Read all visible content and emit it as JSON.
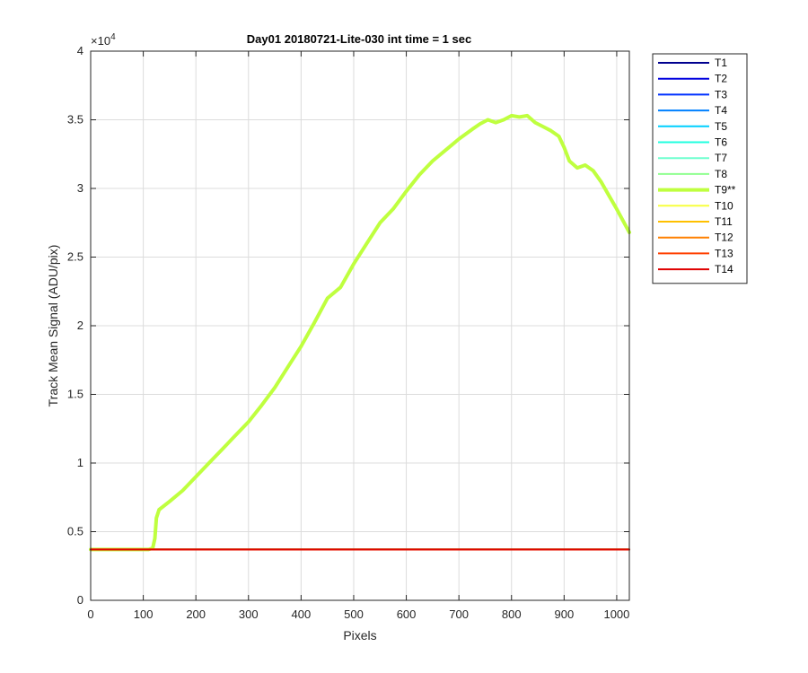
{
  "chart_data": {
    "type": "line",
    "title": "Day01 20180721-Lite-030 int time = 1 sec",
    "xlabel": "Pixels",
    "ylabel": "Track Mean Signal (ADU/pix)",
    "y_exponent_label": "×10",
    "y_exponent_power": "4",
    "xlim": [
      0,
      1024
    ],
    "ylim": [
      0,
      40000
    ],
    "xticks": [
      0,
      100,
      200,
      300,
      400,
      500,
      600,
      700,
      800,
      900,
      1000
    ],
    "yticks": [
      0,
      5000,
      10000,
      15000,
      20000,
      25000,
      30000,
      35000,
      40000
    ],
    "xtick_labels": [
      "0",
      "100",
      "200",
      "300",
      "400",
      "500",
      "600",
      "700",
      "800",
      "900",
      "1000"
    ],
    "ytick_labels": [
      "0",
      "0.5",
      "1",
      "1.5",
      "2",
      "2.5",
      "3",
      "3.5",
      "4"
    ],
    "grid": true,
    "legend_position": "outside-top-right",
    "series": [
      {
        "name": "T1",
        "color": "#00008f",
        "width": 2,
        "x": [
          0,
          1024
        ],
        "y": [
          3700,
          3700
        ]
      },
      {
        "name": "T2",
        "color": "#0000df",
        "width": 2,
        "x": [
          0,
          1024
        ],
        "y": [
          3700,
          3700
        ]
      },
      {
        "name": "T3",
        "color": "#0030ff",
        "width": 2,
        "x": [
          0,
          1024
        ],
        "y": [
          3700,
          3700
        ]
      },
      {
        "name": "T4",
        "color": "#0080ff",
        "width": 2,
        "x": [
          0,
          1024
        ],
        "y": [
          3700,
          3700
        ]
      },
      {
        "name": "T5",
        "color": "#00cfff",
        "width": 2,
        "x": [
          0,
          1024
        ],
        "y": [
          3700,
          3700
        ]
      },
      {
        "name": "T6",
        "color": "#20ffdf",
        "width": 2,
        "x": [
          0,
          1024
        ],
        "y": [
          3700,
          3700
        ]
      },
      {
        "name": "T7",
        "color": "#70ffcf",
        "width": 2,
        "x": [
          0,
          1024
        ],
        "y": [
          3700,
          3700
        ]
      },
      {
        "name": "T8",
        "color": "#8fff8f",
        "width": 2,
        "x": [
          0,
          1024
        ],
        "y": [
          3700,
          3700
        ]
      },
      {
        "name": "T9**",
        "color": "#bfff3f",
        "width": 4,
        "x": [
          0,
          110,
          118,
          122,
          125,
          130,
          150,
          175,
          200,
          225,
          250,
          275,
          300,
          325,
          350,
          375,
          400,
          425,
          450,
          475,
          500,
          525,
          550,
          575,
          600,
          625,
          650,
          675,
          700,
          725,
          740,
          755,
          770,
          785,
          800,
          815,
          830,
          845,
          860,
          875,
          890,
          900,
          910,
          925,
          940,
          955,
          970,
          985,
          1000,
          1024
        ],
        "y": [
          3700,
          3700,
          3800,
          4500,
          6000,
          6600,
          7200,
          8000,
          9000,
          10000,
          11000,
          12000,
          13000,
          14200,
          15500,
          17000,
          18500,
          20200,
          22000,
          22800,
          24500,
          26000,
          27500,
          28500,
          29800,
          31000,
          32000,
          32800,
          33600,
          34300,
          34700,
          35000,
          34800,
          35000,
          35300,
          35200,
          35300,
          34800,
          34500,
          34200,
          33800,
          33000,
          32000,
          31500,
          31700,
          31300,
          30500,
          29500,
          28500,
          26800
        ]
      },
      {
        "name": "T10",
        "color": "#f7ff3f",
        "width": 2,
        "x": [
          0,
          1024
        ],
        "y": [
          3700,
          3700
        ]
      },
      {
        "name": "T11",
        "color": "#ffc000",
        "width": 2,
        "x": [
          0,
          1024
        ],
        "y": [
          3700,
          3700
        ]
      },
      {
        "name": "T12",
        "color": "#ff8000",
        "width": 2,
        "x": [
          0,
          1024
        ],
        "y": [
          3700,
          3700
        ]
      },
      {
        "name": "T13",
        "color": "#ff4000",
        "width": 2,
        "x": [
          0,
          1024
        ],
        "y": [
          3700,
          3700
        ]
      },
      {
        "name": "T14",
        "color": "#df0000",
        "width": 2,
        "x": [
          0,
          1024
        ],
        "y": [
          3700,
          3700
        ]
      }
    ]
  }
}
